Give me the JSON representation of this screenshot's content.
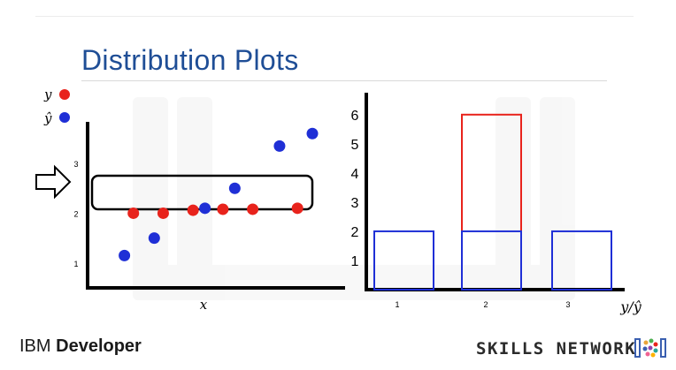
{
  "slide": {
    "title": "Distribution Plots",
    "footer_left_prefix": "IBM ",
    "footer_left_bold": "Developer",
    "footer_right": "SKILLS NETWORK"
  },
  "colors": {
    "actual": "#e8231c",
    "predicted": "#1f2fd6",
    "title": "#1f4e96"
  },
  "chart_data": [
    {
      "type": "scatter",
      "xlabel": "x",
      "ylabel": "",
      "y_ticks": [
        "1",
        "2",
        "3"
      ],
      "ylim": [
        0.5,
        3.8
      ],
      "legend": {
        "placement": "top-left",
        "entries": [
          {
            "label": "y",
            "color": "#e8231c"
          },
          {
            "label": "ŷ",
            "color": "#1f2fd6"
          }
        ]
      },
      "series": [
        {
          "name": "y",
          "color": "#e8231c",
          "points": [
            [
              1.0,
              2.0
            ],
            [
              2.0,
              2.0
            ],
            [
              3.0,
              2.06
            ],
            [
              4.0,
              2.08
            ],
            [
              5.0,
              2.08
            ],
            [
              6.5,
              2.1
            ]
          ]
        },
        {
          "name": "ŷ",
          "color": "#1f2fd6",
          "points": [
            [
              0.7,
              1.15
            ],
            [
              1.7,
              1.5
            ],
            [
              3.4,
              2.1
            ],
            [
              4.4,
              2.5
            ],
            [
              5.9,
              3.35
            ],
            [
              7.0,
              3.6
            ]
          ]
        }
      ],
      "annotation": "arrow and rounded box highlighting values near 2"
    },
    {
      "type": "bar",
      "xlabel": "y/ŷ",
      "x_ticks": [
        "1",
        "2",
        "3"
      ],
      "y_ticks": [
        "1",
        "2",
        "3",
        "4",
        "5",
        "6"
      ],
      "ylim": [
        0,
        6.6
      ],
      "series": [
        {
          "name": "ŷ",
          "color": "#1f2fd6",
          "values": [
            2,
            2,
            2
          ]
        },
        {
          "name": "y",
          "color": "#e8231c",
          "values": [
            0,
            6,
            0
          ]
        }
      ]
    }
  ]
}
